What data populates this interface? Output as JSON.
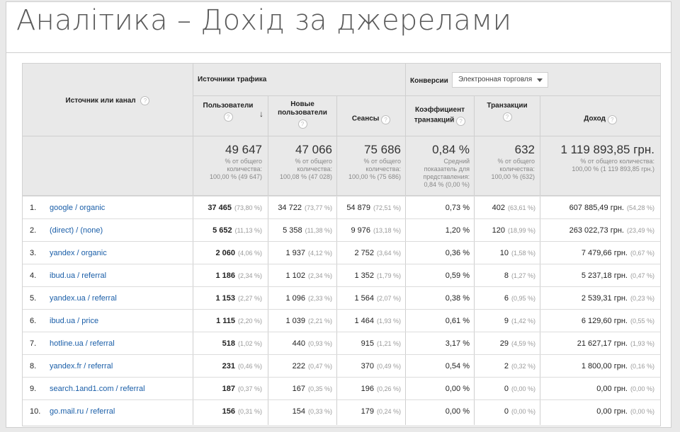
{
  "title": "Аналітика – Дохід за джерелами",
  "header": {
    "source_channel": "Источник или канал",
    "traffic_sources": "Источники трафика",
    "conversions": "Конверсии",
    "dropdown_value": "Электронная торговля",
    "cols": {
      "users_1": "Пользователи",
      "new_users_1": "Новые",
      "new_users_2": "пользователи",
      "sessions": "Сеансы",
      "conv_rate_1": "Коэффициент",
      "conv_rate_2": "транзакций",
      "transactions": "Транзакции",
      "revenue": "Доход"
    },
    "help_glyph": "?",
    "sort_glyph": "↓"
  },
  "totals": {
    "users": {
      "value": "49 647",
      "l1": "% от общего",
      "l2": "количества:",
      "l3": "100,00 % (49 647)"
    },
    "new_users": {
      "value": "47 066",
      "l1": "% от общего",
      "l2": "количества:",
      "l3": "100,08 % (47 028)"
    },
    "sessions": {
      "value": "75 686",
      "l1": "% от общего",
      "l2": "количества:",
      "l3": "100,00 % (75 686)"
    },
    "conv_rate": {
      "value": "0,84 %",
      "l1": "Средний",
      "l2": "показатель для",
      "l3": "представления:",
      "l4": "0,84 % (0,00 %)"
    },
    "transactions": {
      "value": "632",
      "l1": "% от общего",
      "l2": "количества:",
      "l3": "100,00 % (632)"
    },
    "revenue": {
      "value": "1 119 893,85 грн.",
      "l1": "% от общего количества:",
      "l2": "100,00 % (1 119 893,85 грн.)"
    }
  },
  "rows": [
    {
      "n": "1.",
      "src": "google / organic",
      "users": "37 465",
      "users_p": "(73,80 %)",
      "new": "34 722",
      "new_p": "(73,77 %)",
      "sess": "54 879",
      "sess_p": "(72,51 %)",
      "conv": "0,73 %",
      "tx": "402",
      "tx_p": "(63,61 %)",
      "rev": "607 885,49 грн.",
      "rev_p": "(54,28 %)"
    },
    {
      "n": "2.",
      "src": "(direct) / (none)",
      "users": "5 652",
      "users_p": "(11,13 %)",
      "new": "5 358",
      "new_p": "(11,38 %)",
      "sess": "9 976",
      "sess_p": "(13,18 %)",
      "conv": "1,20 %",
      "tx": "120",
      "tx_p": "(18,99 %)",
      "rev": "263 022,73 грн.",
      "rev_p": "(23,49 %)"
    },
    {
      "n": "3.",
      "src": "yandex / organic",
      "users": "2 060",
      "users_p": "(4,06 %)",
      "new": "1 937",
      "new_p": "(4,12 %)",
      "sess": "2 752",
      "sess_p": "(3,64 %)",
      "conv": "0,36 %",
      "tx": "10",
      "tx_p": "(1,58 %)",
      "rev": "7 479,66 грн.",
      "rev_p": "(0,67 %)"
    },
    {
      "n": "4.",
      "src": "ibud.ua / referral",
      "users": "1 186",
      "users_p": "(2,34 %)",
      "new": "1 102",
      "new_p": "(2,34 %)",
      "sess": "1 352",
      "sess_p": "(1,79 %)",
      "conv": "0,59 %",
      "tx": "8",
      "tx_p": "(1,27 %)",
      "rev": "5 237,18 грн.",
      "rev_p": "(0,47 %)"
    },
    {
      "n": "5.",
      "src": "yandex.ua / referral",
      "users": "1 153",
      "users_p": "(2,27 %)",
      "new": "1 096",
      "new_p": "(2,33 %)",
      "sess": "1 564",
      "sess_p": "(2,07 %)",
      "conv": "0,38 %",
      "tx": "6",
      "tx_p": "(0,95 %)",
      "rev": "2 539,31 грн.",
      "rev_p": "(0,23 %)"
    },
    {
      "n": "6.",
      "src": "ibud.ua / price",
      "users": "1 115",
      "users_p": "(2,20 %)",
      "new": "1 039",
      "new_p": "(2,21 %)",
      "sess": "1 464",
      "sess_p": "(1,93 %)",
      "conv": "0,61 %",
      "tx": "9",
      "tx_p": "(1,42 %)",
      "rev": "6 129,60 грн.",
      "rev_p": "(0,55 %)"
    },
    {
      "n": "7.",
      "src": "hotline.ua / referral",
      "users": "518",
      "users_p": "(1,02 %)",
      "new": "440",
      "new_p": "(0,93 %)",
      "sess": "915",
      "sess_p": "(1,21 %)",
      "conv": "3,17 %",
      "tx": "29",
      "tx_p": "(4,59 %)",
      "rev": "21 627,17 грн.",
      "rev_p": "(1,93 %)"
    },
    {
      "n": "8.",
      "src": "yandex.fr / referral",
      "users": "231",
      "users_p": "(0,46 %)",
      "new": "222",
      "new_p": "(0,47 %)",
      "sess": "370",
      "sess_p": "(0,49 %)",
      "conv": "0,54 %",
      "tx": "2",
      "tx_p": "(0,32 %)",
      "rev": "1 800,00 грн.",
      "rev_p": "(0,16 %)"
    },
    {
      "n": "9.",
      "src": "search.1and1.com / referral",
      "users": "187",
      "users_p": "(0,37 %)",
      "new": "167",
      "new_p": "(0,35 %)",
      "sess": "196",
      "sess_p": "(0,26 %)",
      "conv": "0,00 %",
      "tx": "0",
      "tx_p": "(0,00 %)",
      "rev": "0,00 грн.",
      "rev_p": "(0,00 %)"
    },
    {
      "n": "10.",
      "src": "go.mail.ru / referral",
      "users": "156",
      "users_p": "(0,31 %)",
      "new": "154",
      "new_p": "(0,33 %)",
      "sess": "179",
      "sess_p": "(0,24 %)",
      "conv": "0,00 %",
      "tx": "0",
      "tx_p": "(0,00 %)",
      "rev": "0,00 грн.",
      "rev_p": "(0,00 %)"
    }
  ]
}
